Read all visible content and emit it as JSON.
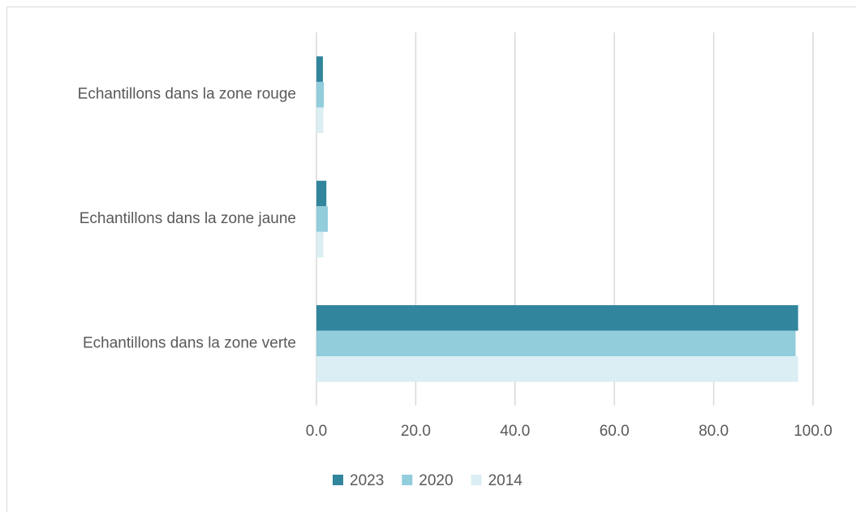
{
  "chart_data": {
    "type": "barh",
    "categories": [
      "Echantillons dans la zone rouge",
      "Echantillons dans la zone jaune",
      "Echantillons dans la zone verte"
    ],
    "series": [
      {
        "name": "2023",
        "color": "#31859c",
        "values": [
          1.3,
          2.0,
          97.0
        ]
      },
      {
        "name": "2020",
        "color": "#92cddc",
        "values": [
          1.5,
          2.3,
          96.5
        ]
      },
      {
        "name": "2014",
        "color": "#daeef3",
        "values": [
          1.4,
          1.4,
          97.0
        ]
      }
    ],
    "xlim": [
      0,
      100
    ],
    "xticks": [
      {
        "value": 0,
        "label": "0.0"
      },
      {
        "value": 20,
        "label": "20.0"
      },
      {
        "value": 40,
        "label": "40.0"
      },
      {
        "value": 60,
        "label": "60.0"
      },
      {
        "value": 80,
        "label": "80.0"
      },
      {
        "value": 100,
        "label": "100.0"
      }
    ],
    "grid": true,
    "legend": "bottom"
  }
}
